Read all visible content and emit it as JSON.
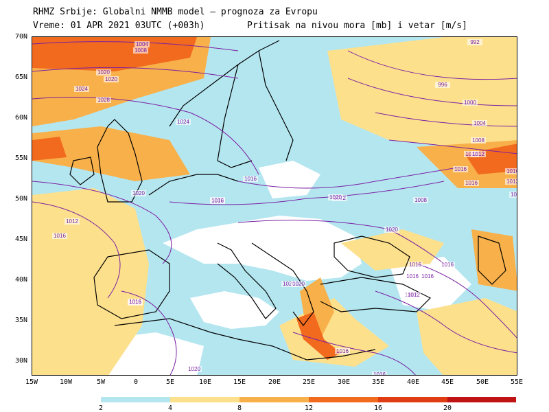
{
  "title": {
    "line1": "RHMZ Srbije: Globalni NMMB model — prognoza za Evropu",
    "line2_left": "Vreme: 01 APR 2021 03UTC (+003h)",
    "line2_right": "Pritisak na nivou mora [mb] i vetar [m/s]"
  },
  "axes": {
    "lat_labels": [
      "70N",
      "65N",
      "60N",
      "55N",
      "50N",
      "45N",
      "40N",
      "35N",
      "30N"
    ],
    "lon_labels": [
      "15W",
      "10W",
      "5W",
      "0",
      "5E",
      "10E",
      "15E",
      "20E",
      "25E",
      "30E",
      "35E",
      "40E",
      "45E",
      "50E",
      "55E"
    ]
  },
  "isobar_labels": [
    "1004",
    "1008",
    "1020",
    "1024",
    "1028",
    "1012",
    "1016",
    "1016",
    "1016",
    "1020",
    "1020",
    "1020",
    "1012",
    "1008",
    "1016",
    "1016",
    "1020",
    "1020",
    "1020",
    "1016",
    "1016",
    "1016",
    "1012",
    "1012",
    "1016",
    "1016",
    "1020",
    "1012",
    "1016",
    "1016",
    "1000",
    "996",
    "992",
    "1004",
    "1008",
    "1012",
    "1016",
    "1012",
    "1012",
    "1020",
    "1024",
    "1016"
  ],
  "colorbar": {
    "labels": [
      "2",
      "4",
      "8",
      "12",
      "16",
      "20"
    ],
    "colors": [
      "#b4e6f0",
      "#fde08c",
      "#f8b04a",
      "#f26a1e",
      "#e03c14",
      "#c01414"
    ]
  },
  "map_colors": {
    "water": "#ffffff",
    "light_wind": "#b4e6f0",
    "moderate_wind": "#fde08c",
    "strong_wind": "#f8b04a",
    "very_strong_wind": "#f26a1e",
    "isobar": "#7a1fa2",
    "coast": "#000000"
  }
}
